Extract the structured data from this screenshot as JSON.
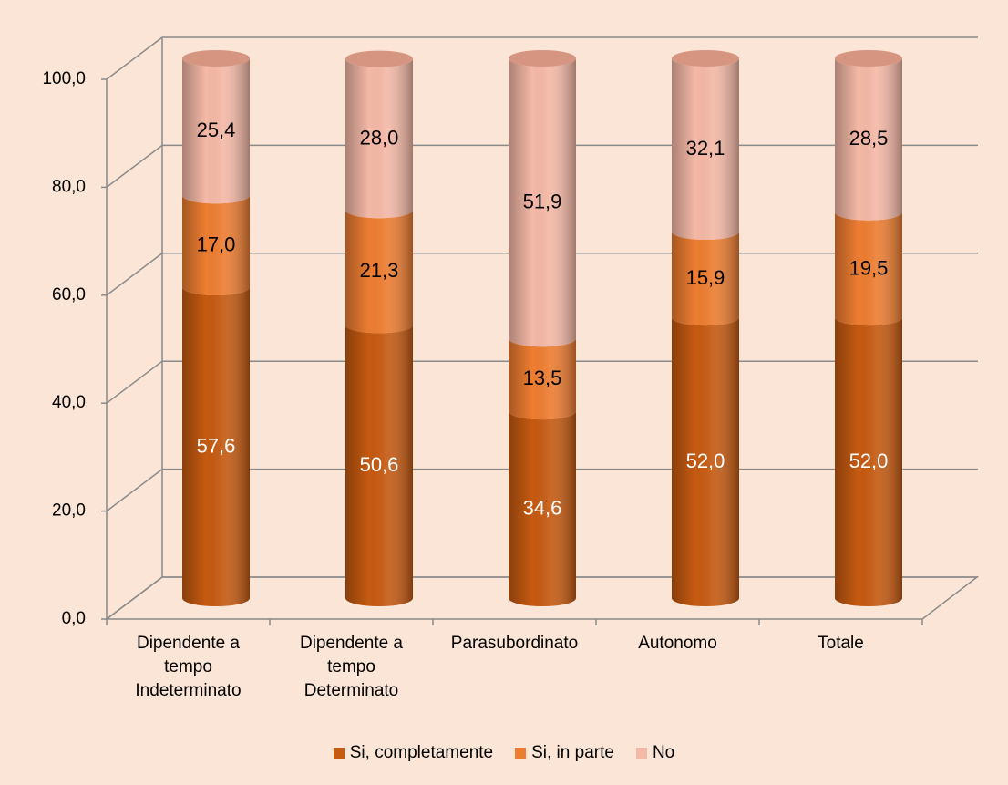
{
  "chart_data": {
    "type": "bar3d_stacked",
    "categories": [
      "Dipendente a tempo Indeterminato",
      "Dipendente a tempo Determinato",
      "Parasubordinato",
      "Autonomo",
      "Totale"
    ],
    "series": [
      {
        "name": "Si, completamente",
        "color": "#c55a11",
        "label_color": "#ffffff",
        "values": [
          57.6,
          50.6,
          34.6,
          52.0,
          52.0
        ],
        "value_labels": [
          "57,6",
          "50,6",
          "34,6",
          "52,0",
          "52,0"
        ]
      },
      {
        "name": "Si, in parte",
        "color": "#ed7d31",
        "label_color": "#000000",
        "values": [
          17.0,
          21.3,
          13.5,
          15.9,
          19.5
        ],
        "value_labels": [
          "17,0",
          "21,3",
          "13,5",
          "15,9",
          "19,5"
        ]
      },
      {
        "name": "No",
        "color": "#f4b8a6",
        "label_color": "#000000",
        "values": [
          25.4,
          28.0,
          51.9,
          32.1,
          28.5
        ],
        "value_labels": [
          "25,4",
          "28,0",
          "51,9",
          "32,1",
          "28,5"
        ]
      }
    ],
    "ylim": [
      0,
      100
    ],
    "yticks": [
      {
        "value": 0,
        "label": "0,0"
      },
      {
        "value": 20,
        "label": "20,0"
      },
      {
        "value": 40,
        "label": "40,0"
      },
      {
        "value": 60,
        "label": "60,0"
      },
      {
        "value": 80,
        "label": "80,0"
      },
      {
        "value": 100,
        "label": "100,0"
      }
    ],
    "grid": true,
    "legend": "bottom"
  }
}
